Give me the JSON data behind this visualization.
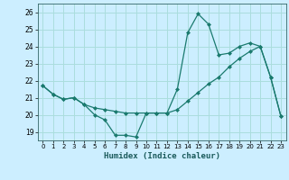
{
  "title": "",
  "xlabel": "Humidex (Indice chaleur)",
  "bg_color": "#cceeff",
  "grid_color": "#aadddd",
  "line_color": "#1a7a6e",
  "xlim": [
    -0.5,
    23.5
  ],
  "ylim": [
    18.5,
    26.5
  ],
  "xticks": [
    0,
    1,
    2,
    3,
    4,
    5,
    6,
    7,
    8,
    9,
    10,
    11,
    12,
    13,
    14,
    15,
    16,
    17,
    18,
    19,
    20,
    21,
    22,
    23
  ],
  "yticks": [
    19,
    20,
    21,
    22,
    23,
    24,
    25,
    26
  ],
  "series1_x": [
    0,
    1,
    2,
    3,
    4,
    5,
    6,
    7,
    8,
    9,
    10,
    11,
    12,
    13,
    14,
    15,
    16,
    17,
    18,
    19,
    20,
    21,
    22,
    23
  ],
  "series1_y": [
    21.7,
    21.2,
    20.9,
    21.0,
    20.6,
    20.0,
    19.7,
    18.8,
    18.8,
    18.7,
    20.1,
    20.1,
    20.1,
    21.5,
    24.8,
    25.9,
    25.3,
    23.5,
    23.6,
    24.0,
    24.2,
    24.0,
    22.2,
    19.9
  ],
  "series2_x": [
    0,
    1,
    2,
    3,
    4,
    5,
    6,
    7,
    8,
    9,
    10,
    11,
    12,
    13,
    14,
    15,
    16,
    17,
    18,
    19,
    20,
    21,
    22,
    23
  ],
  "series2_y": [
    21.7,
    21.2,
    20.9,
    21.0,
    20.6,
    20.4,
    20.3,
    20.2,
    20.1,
    20.1,
    20.1,
    20.1,
    20.1,
    20.3,
    20.8,
    21.3,
    21.8,
    22.2,
    22.8,
    23.3,
    23.7,
    24.0,
    22.2,
    19.9
  ]
}
